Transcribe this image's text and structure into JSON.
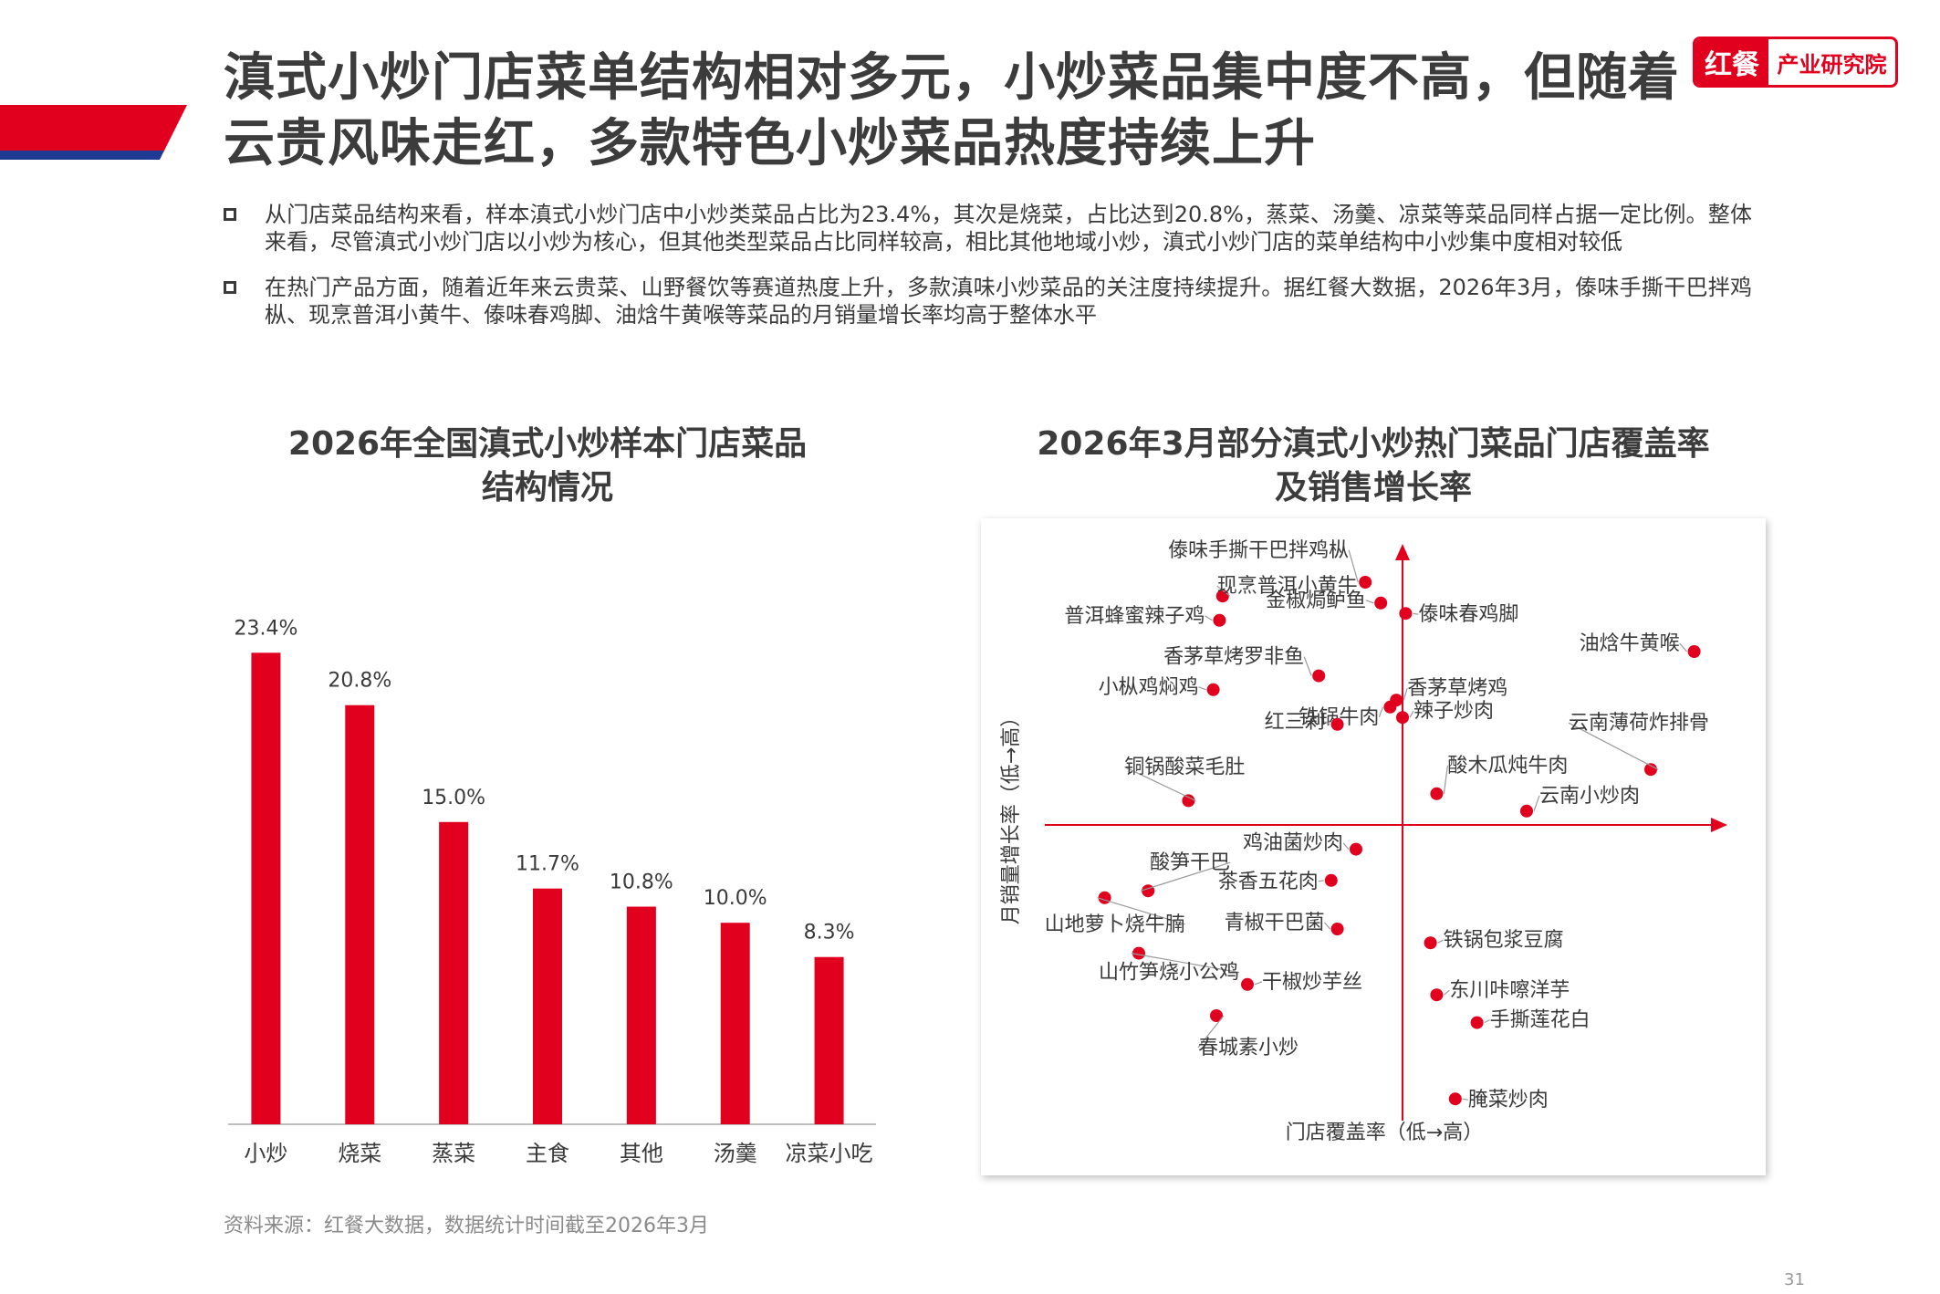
{
  "header": {
    "title_lines": [
      "滇式小炒门店菜单结构相对多元，小炒菜品集中度不高，但随着",
      "云贵风味走红，多款特色小炒菜品热度持续上升"
    ],
    "logo_mark": "红餐",
    "logo_text": "产业研究院"
  },
  "bullets": [
    "从门店菜品结构来看，样本滇式小炒门店中小炒类菜品占比为23.4%，其次是烧菜，占比达到20.8%，蒸菜、汤羹、凉菜等菜品同样占据一定比例。整体来看，尽管滇式小炒门店以小炒为核心，但其他类型菜品占比同样较高，相比其他地域小炒，滇式小炒门店的菜单结构中小炒集中度相对较低",
    "在热门产品方面，随着近年来云贵菜、山野餐饮等赛道热度上升，多款滇味小炒菜品的关注度持续提升。据红餐大数据，2026年3月，傣味手撕干巴拌鸡枞、现烹普洱小黄牛、傣味春鸡脚、油焓牛黄喉等菜品的月销量增长率均高于整体水平"
  ],
  "colors": {
    "accent": "#e1001e",
    "accent_blue": "#1f3a93",
    "text": "#3a3a3a"
  },
  "chart_data": [
    {
      "type": "bar",
      "title_lines": [
        "2026年全国滇式小炒样本门店菜品",
        "结构情况"
      ],
      "categories": [
        "小炒",
        "烧菜",
        "蒸菜",
        "主食",
        "其他",
        "汤羹",
        "凉菜小吃"
      ],
      "values": [
        23.4,
        20.8,
        15.0,
        11.7,
        10.8,
        10.0,
        8.3
      ],
      "value_labels": [
        "23.4%",
        "20.8%",
        "15.0%",
        "11.7%",
        "10.8%",
        "10.0%",
        "8.3%"
      ],
      "ylim": [
        0,
        25
      ],
      "unit": "%",
      "color": "#e1001e",
      "grid": false,
      "legend": "none"
    },
    {
      "type": "scatter",
      "title_lines": [
        "2026年3月部分滇式小炒热门菜品门店覆盖率",
        "及销售增长率"
      ],
      "xlabel": "门店覆盖率（低→高）",
      "ylabel": "月销量增长率（低→高）",
      "xlim": [
        -1,
        1
      ],
      "ylim": [
        -1,
        1
      ],
      "grid": false,
      "legend": "none",
      "color": "#e1001e",
      "points": [
        {
          "label": "傣味手撕干巴拌鸡枞",
          "x": -0.12,
          "y": 0.7
        },
        {
          "label": "现烹普洱小黄牛",
          "x": -0.58,
          "y": 0.66
        },
        {
          "label": "金椒焗鲈鱼",
          "x": -0.07,
          "y": 0.64
        },
        {
          "label": "傣味春鸡脚",
          "x": 0.01,
          "y": 0.61
        },
        {
          "label": "普洱蜂蜜辣子鸡",
          "x": -0.59,
          "y": 0.59
        },
        {
          "label": "油焓牛黄喉",
          "x": 0.94,
          "y": 0.5
        },
        {
          "label": "香茅草烤罗非鱼",
          "x": -0.27,
          "y": 0.43
        },
        {
          "label": "小枞鸡焖鸡",
          "x": -0.61,
          "y": 0.39
        },
        {
          "label": "铁锅牛肉",
          "x": -0.04,
          "y": 0.34
        },
        {
          "label": "香茅草烤鸡",
          "x": -0.02,
          "y": 0.36
        },
        {
          "label": "辣子炒肉",
          "x": 0.0,
          "y": 0.31
        },
        {
          "label": "红三剁",
          "x": -0.21,
          "y": 0.29
        },
        {
          "label": "云南薄荷炸排骨",
          "x": 0.8,
          "y": 0.16
        },
        {
          "label": "酸木瓜炖牛肉",
          "x": 0.11,
          "y": 0.09
        },
        {
          "label": "铜锅酸菜毛肚",
          "x": -0.69,
          "y": 0.07
        },
        {
          "label": "云南小炒肉",
          "x": 0.4,
          "y": 0.04
        },
        {
          "label": "鸡油菌炒肉",
          "x": -0.15,
          "y": -0.07
        },
        {
          "label": "酸笋干巴",
          "x": -0.82,
          "y": -0.19
        },
        {
          "label": "茶香五花肉",
          "x": -0.23,
          "y": -0.16
        },
        {
          "label": "山地萝卜烧牛腩",
          "x": -0.96,
          "y": -0.21
        },
        {
          "label": "青椒干巴菌",
          "x": -0.21,
          "y": -0.3
        },
        {
          "label": "铁锅包浆豆腐",
          "x": 0.09,
          "y": -0.34
        },
        {
          "label": "山竹笋烧小公鸡",
          "x": -0.85,
          "y": -0.37
        },
        {
          "label": "干椒炒芋丝",
          "x": -0.5,
          "y": -0.46
        },
        {
          "label": "东川咔嚓洋芋",
          "x": 0.11,
          "y": -0.49
        },
        {
          "label": "手撕莲花白",
          "x": 0.24,
          "y": -0.57
        },
        {
          "label": "春城素小炒",
          "x": -0.6,
          "y": -0.55
        },
        {
          "label": "腌菜炒肉",
          "x": 0.17,
          "y": -0.79
        }
      ]
    }
  ],
  "source": "资料来源：红餐大数据，数据统计时间截至2026年3月",
  "page_number": "31"
}
